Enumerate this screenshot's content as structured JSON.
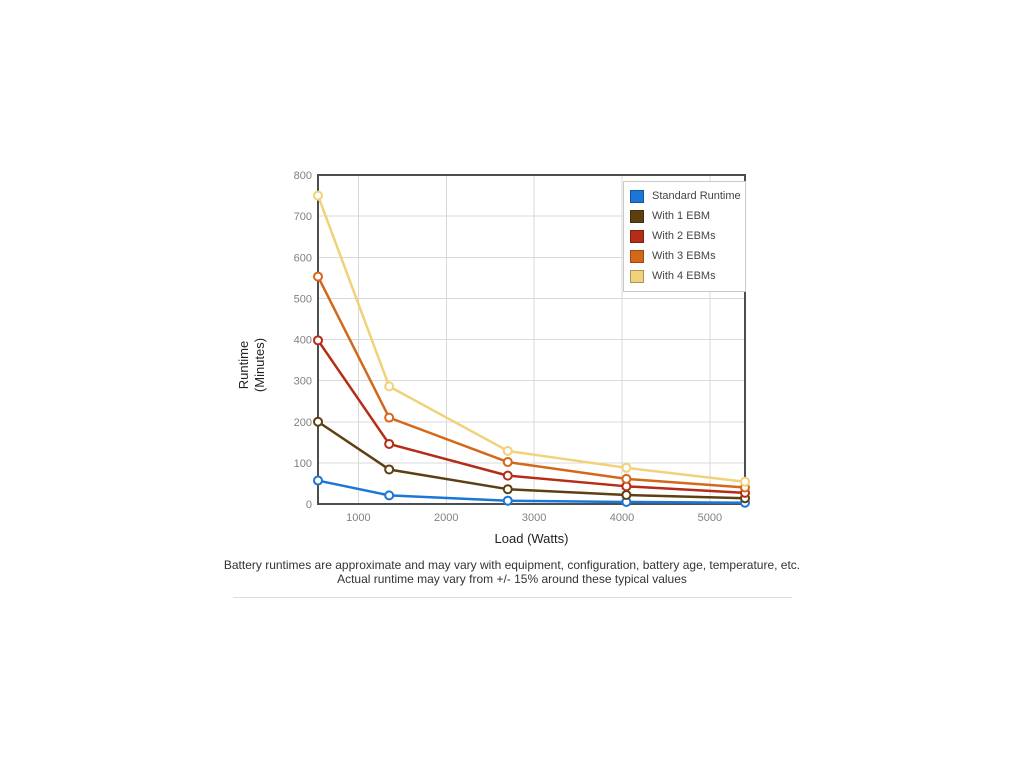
{
  "footer": {
    "line1": "Battery runtimes are approximate and may vary with equipment, configuration, battery age, temperature, etc.",
    "line2": "Actual runtime may vary from +/- 15% around these typical values"
  },
  "chart_data": {
    "type": "line",
    "title": "",
    "xlabel": "Load (Watts)",
    "ylabel_line1": "Runtime",
    "ylabel_line2": "(Minutes)",
    "x": [
      540,
      1350,
      2700,
      4050,
      5400
    ],
    "xlim": [
      540,
      5400
    ],
    "ylim": [
      0,
      800
    ],
    "x_ticks": [
      1000,
      2000,
      3000,
      4000,
      5000
    ],
    "y_ticks": [
      0,
      100,
      200,
      300,
      400,
      500,
      600,
      700,
      800
    ],
    "grid": true,
    "legend_position": "top-right",
    "marker_fill": "#ffffff",
    "colors": {
      "axis_border": "#4d4d4d",
      "gridline": "#d9d9d9",
      "tick_label": "#808080"
    },
    "series": [
      {
        "name": "Standard Runtime",
        "color": "#1b76d8",
        "values": [
          57,
          21,
          8,
          5,
          3
        ]
      },
      {
        "name": "With 1 EBM",
        "color": "#5d3f11",
        "values": [
          200,
          84,
          36,
          22,
          14
        ]
      },
      {
        "name": "With 2 EBMs",
        "color": "#b52c17",
        "values": [
          398,
          146,
          69,
          43,
          27
        ]
      },
      {
        "name": "With 3 EBMs",
        "color": "#d4681a",
        "values": [
          553,
          210,
          102,
          61,
          40
        ]
      },
      {
        "name": "With 4 EBMs",
        "color": "#f0d27a",
        "values": [
          750,
          286,
          129,
          88,
          54
        ]
      }
    ]
  }
}
